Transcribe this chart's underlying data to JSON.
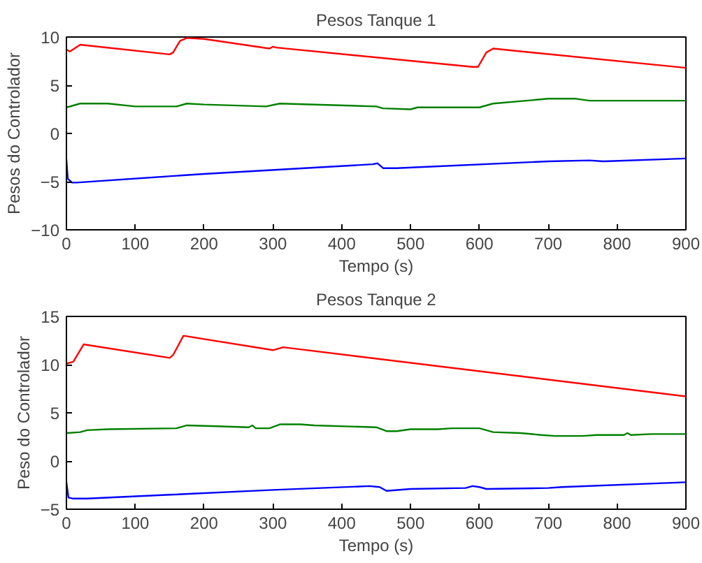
{
  "chart_data": [
    {
      "type": "line",
      "title": "Pesos Tanque 1",
      "xlabel": "Tempo (s)",
      "ylabel": "Pesos do Controlador",
      "xlim": [
        0,
        900
      ],
      "ylim": [
        -10,
        10
      ],
      "xticks": [
        0,
        100,
        200,
        300,
        400,
        500,
        600,
        700,
        800,
        900
      ],
      "yticks": [
        -10,
        -5,
        0,
        5,
        10
      ],
      "series": [
        {
          "color": "#ff0000",
          "x": [
            0,
            5,
            20,
            150,
            155,
            165,
            175,
            200,
            295,
            300,
            305,
            590,
            598,
            610,
            620,
            900
          ],
          "values": [
            8.7,
            8.5,
            9.2,
            8.2,
            8.4,
            9.6,
            9.9,
            9.8,
            8.8,
            9.0,
            8.9,
            6.9,
            6.9,
            8.4,
            8.8,
            6.8
          ]
        },
        {
          "color": "#008000",
          "x": [
            0,
            20,
            60,
            100,
            160,
            175,
            200,
            290,
            310,
            450,
            460,
            500,
            510,
            600,
            620,
            700,
            740,
            760,
            900
          ],
          "values": [
            2.7,
            3.1,
            3.1,
            2.8,
            2.8,
            3.1,
            3.0,
            2.8,
            3.1,
            2.8,
            2.6,
            2.5,
            2.7,
            2.7,
            3.1,
            3.6,
            3.6,
            3.4,
            3.4
          ]
        },
        {
          "color": "#0000ff",
          "x": [
            0,
            2,
            8,
            15,
            200,
            445,
            452,
            460,
            480,
            700,
            760,
            780,
            900
          ],
          "values": [
            -2.7,
            -4.7,
            -5.1,
            -5.1,
            -4.2,
            -3.2,
            -3.1,
            -3.6,
            -3.6,
            -2.9,
            -2.8,
            -2.9,
            -2.6
          ]
        }
      ]
    },
    {
      "type": "line",
      "title": "Pesos Tanque 2",
      "xlabel": "Tempo (s)",
      "ylabel": "Peso do Controlador",
      "xlim": [
        0,
        900
      ],
      "ylim": [
        -5,
        15
      ],
      "xticks": [
        0,
        100,
        200,
        300,
        400,
        500,
        600,
        700,
        800,
        900
      ],
      "yticks": [
        -5,
        0,
        5,
        10,
        15
      ],
      "series": [
        {
          "color": "#ff0000",
          "x": [
            0,
            10,
            25,
            150,
            155,
            170,
            300,
            315,
            900
          ],
          "values": [
            10.1,
            10.3,
            12.1,
            10.7,
            11.0,
            13.0,
            11.5,
            11.8,
            6.7
          ]
        },
        {
          "color": "#008000",
          "x": [
            0,
            20,
            30,
            60,
            160,
            175,
            220,
            265,
            270,
            275,
            295,
            310,
            340,
            360,
            450,
            465,
            480,
            500,
            540,
            560,
            600,
            620,
            660,
            690,
            710,
            750,
            770,
            810,
            815,
            820,
            850,
            900
          ],
          "values": [
            2.9,
            3.0,
            3.2,
            3.3,
            3.4,
            3.7,
            3.6,
            3.5,
            3.7,
            3.4,
            3.4,
            3.8,
            3.8,
            3.7,
            3.5,
            3.1,
            3.1,
            3.3,
            3.3,
            3.4,
            3.4,
            3.0,
            2.9,
            2.7,
            2.6,
            2.6,
            2.7,
            2.7,
            2.9,
            2.7,
            2.8,
            2.8
          ]
        },
        {
          "color": "#0000ff",
          "x": [
            0,
            3,
            10,
            30,
            150,
            300,
            440,
            455,
            465,
            500,
            580,
            590,
            600,
            610,
            700,
            720,
            900
          ],
          "values": [
            -2.2,
            -3.8,
            -3.9,
            -3.9,
            -3.5,
            -3.0,
            -2.6,
            -2.7,
            -3.1,
            -2.9,
            -2.8,
            -2.6,
            -2.7,
            -2.9,
            -2.8,
            -2.7,
            -2.2
          ]
        }
      ]
    }
  ]
}
